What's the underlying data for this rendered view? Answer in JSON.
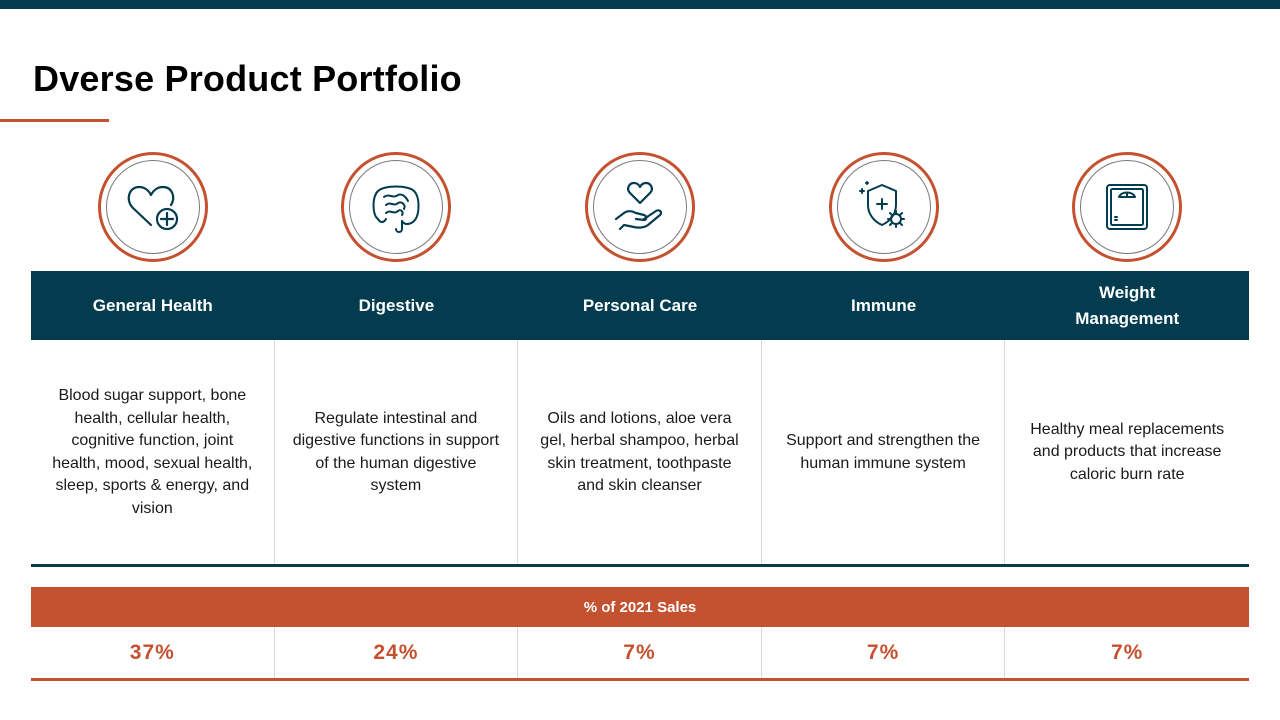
{
  "slide": {
    "title": "Dverse Product Portfolio"
  },
  "categories": [
    {
      "name": "General Health",
      "icon": "heart-plus-icon",
      "description": "Blood sugar  support, bone health, cellular  health, cognitive  function, joint health, mood,  sexual health,  sleep, sports & energy, and vision",
      "sales_pct": "37%"
    },
    {
      "name": "Digestive",
      "icon": "intestine-icon",
      "description": "Regulate intestinal and digestive  functions in support of the  human digestive  system",
      "sales_pct": "24%"
    },
    {
      "name": "Personal  Care",
      "icon": "hand-heart-icon",
      "description": "Oils and lotions,  aloe vera gel, herbal shampoo, herbal  skin treatment,  toothpaste and skin cleanser",
      "sales_pct": "7%"
    },
    {
      "name": "Immune",
      "icon": "shield-virus-icon",
      "description": "Support and  strengthen the  human immune system",
      "sales_pct": "7%"
    },
    {
      "name": "Weight Management",
      "icon": "scale-icon",
      "description": "Healthy meal replacements and products that  increase caloric  burn rate",
      "sales_pct": "7%"
    }
  ],
  "sales": {
    "label": "% of 2021 Sales"
  },
  "colors": {
    "navy": "#033c4f",
    "accent": "#c4512f"
  }
}
